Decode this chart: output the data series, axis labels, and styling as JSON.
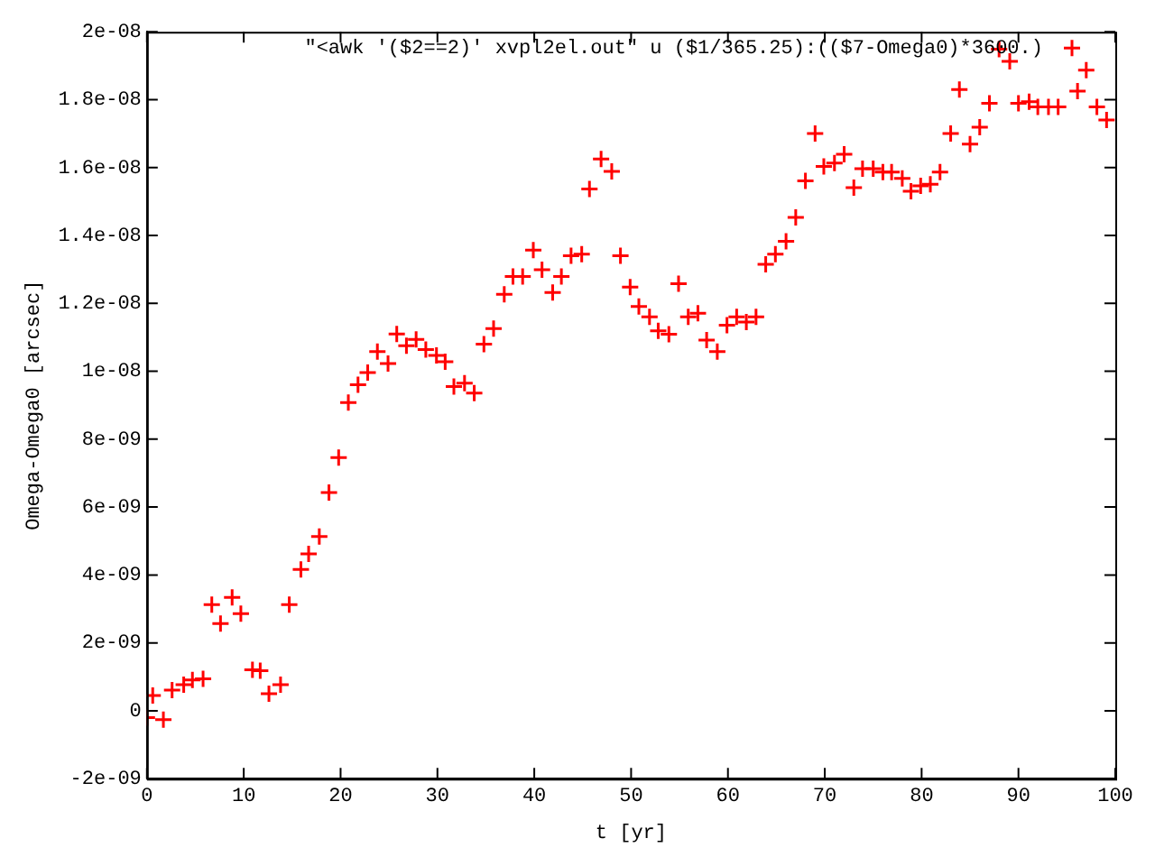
{
  "chart_data": {
    "type": "scatter",
    "xlabel": "t [yr]",
    "ylabel": "Omega-Omega0 [arcsec]",
    "xlim": [
      0,
      100
    ],
    "xticks": [
      0,
      10,
      20,
      30,
      40,
      50,
      60,
      70,
      80,
      90,
      100
    ],
    "ylim": [
      -2e-09,
      2e-08
    ],
    "yticks": [
      {
        "value": -2e-09,
        "label": "-2e-09"
      },
      0,
      {
        "value": 2e-09,
        "label": "2e-09"
      },
      {
        "value": 4e-09,
        "label": "4e-09"
      },
      {
        "value": 6e-09,
        "label": "6e-09"
      },
      {
        "value": 8e-09,
        "label": "8e-09"
      },
      {
        "value": 1e-08,
        "label": "1e-08"
      },
      {
        "value": 1.2e-08,
        "label": "1.2e-08"
      },
      {
        "value": 1.4e-08,
        "label": "1.4e-08"
      },
      {
        "value": 1.6e-08,
        "label": "1.6e-08"
      },
      {
        "value": 1.8e-08,
        "label": "1.8e-08"
      },
      {
        "value": 2e-08,
        "label": "2e-08"
      }
    ],
    "grid": false,
    "legend": "top right",
    "marker": "cross",
    "series": [
      {
        "name": "\"<awk '($2==2)' xvpl2el.out\" u ($1/365.25):(($7-Omega0)*3600.)",
        "color": "#ff0000",
        "x": [
          0,
          0.6,
          1.7,
          2.6,
          3.8,
          4.7,
          5.8,
          6.7,
          7.6,
          8.8,
          9.7,
          10.9,
          11.7,
          12.6,
          13.8,
          14.7,
          15.9,
          16.7,
          17.8,
          18.8,
          19.8,
          20.8,
          21.8,
          22.8,
          23.8,
          24.9,
          25.8,
          26.8,
          27.8,
          28.8,
          29.9,
          30.8,
          31.7,
          32.8,
          33.8,
          34.8,
          35.8,
          36.9,
          37.8,
          38.8,
          39.9,
          40.8,
          41.9,
          42.8,
          43.8,
          44.9,
          45.7,
          46.9,
          48.0,
          48.9,
          49.9,
          50.8,
          51.9,
          52.8,
          53.9,
          54.9,
          55.9,
          56.9,
          57.8,
          58.9,
          59.9,
          60.9,
          61.9,
          62.9,
          63.9,
          64.9,
          66.0,
          67.0,
          68.0,
          69.0,
          69.9,
          71.0,
          72.0,
          73.0,
          73.9,
          75.0,
          76.0,
          76.9,
          78.0,
          78.9,
          79.9,
          80.9,
          81.9,
          83.0,
          83.9,
          85.0,
          86.0,
          87.0,
          88.0,
          89.1,
          90.0,
          91.1,
          92.0,
          93.1,
          94.1,
          96.1,
          97.0,
          98.1,
          99.1
        ],
        "values": [
          -2e-10,
          4.5e-10,
          -2.6e-10,
          6.1e-10,
          7.7e-10,
          9.1e-10,
          9.4e-10,
          3.13e-09,
          2.57e-09,
          3.34e-09,
          2.86e-09,
          1.21e-09,
          1.18e-09,
          5e-10,
          7.7e-10,
          3.13e-09,
          4.16e-09,
          4.62e-09,
          5.13e-09,
          6.43e-09,
          7.46e-09,
          9.08e-09,
          9.6e-09,
          9.96e-09,
          1.058e-08,
          1.023e-08,
          1.11e-08,
          1.075e-08,
          1.094e-08,
          1.064e-08,
          1.047e-08,
          1.028e-08,
          9.55e-09,
          9.65e-09,
          9.36e-09,
          1.08e-08,
          1.126e-08,
          1.227e-08,
          1.279e-08,
          1.279e-08,
          1.357e-08,
          1.299e-08,
          1.232e-08,
          1.279e-08,
          1.34e-08,
          1.345e-08,
          1.537e-08,
          1.625e-08,
          1.589e-08,
          1.34e-08,
          1.248e-08,
          1.191e-08,
          1.16e-08,
          1.119e-08,
          1.109e-08,
          1.258e-08,
          1.16e-08,
          1.171e-08,
          1.092e-08,
          1.058e-08,
          1.136e-08,
          1.16e-08,
          1.145e-08,
          1.16e-08,
          1.315e-08,
          1.345e-08,
          1.383e-08,
          1.453e-08,
          1.561e-08,
          1.7e-08,
          1.603e-08,
          1.613e-08,
          1.639e-08,
          1.541e-08,
          1.597e-08,
          1.597e-08,
          1.587e-08,
          1.587e-08,
          1.568e-08,
          1.53e-08,
          1.546e-08,
          1.551e-08,
          1.587e-08,
          1.7e-08,
          1.83e-08,
          1.669e-08,
          1.719e-08,
          1.789e-08,
          1.949e-08,
          1.913e-08,
          1.789e-08,
          1.794e-08,
          1.779e-08,
          1.779e-08,
          1.779e-08,
          1.825e-08,
          1.887e-08,
          1.779e-08,
          1.74e-08
        ]
      }
    ]
  }
}
